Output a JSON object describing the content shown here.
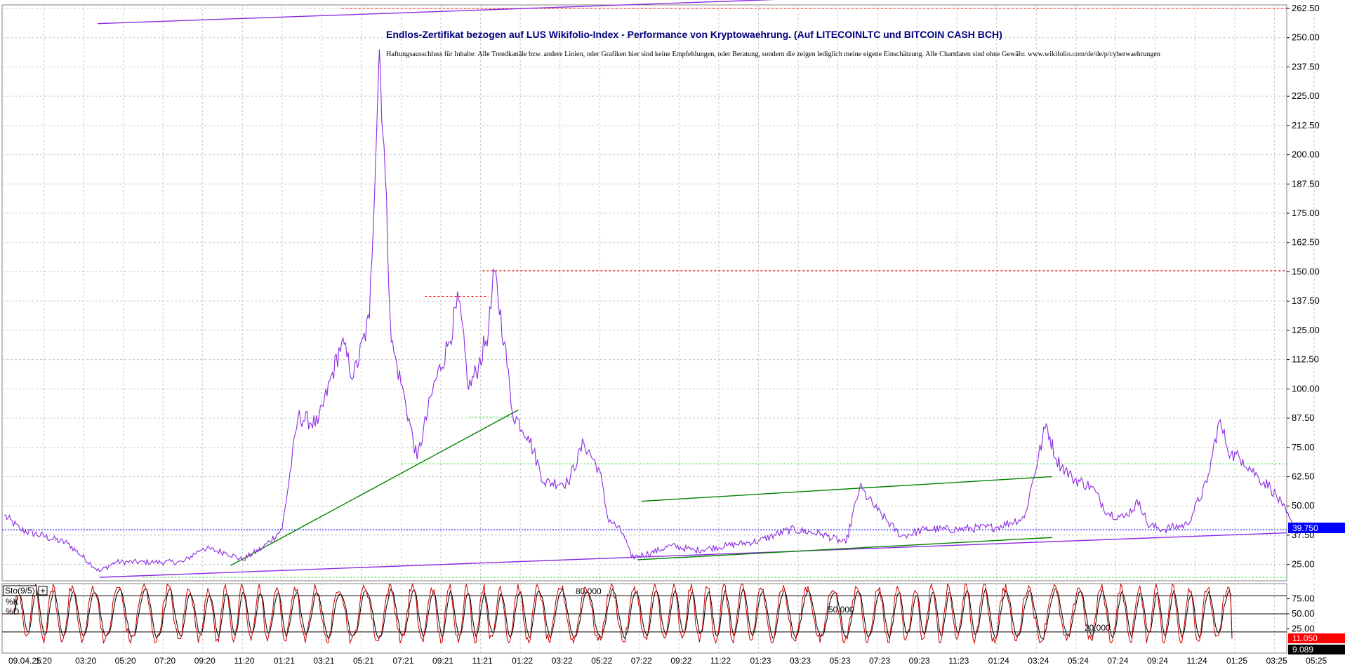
{
  "chart_data": {
    "type": "line",
    "title": "Endlos-Zertifikat bezogen auf LUS Wikifolio-Index - Performance von Kryptowaehrung. (Auf LITECOINLTC und BITCOIN CASH BCH)",
    "subtitle": "Haftungsausschluss für Inhalte: Alle Trendkanäle bzw. andere Linien, oder Grafiken hier sind keine Empfehlungen, oder Beratung, sondern die zeigen lediglich meine eigene Einschätzung. Alle Chartdaten sind ohne Gewähr. www.wikifolio.com/de/de/p/cyberwaehrungen",
    "y_ticks": [
      "262.50",
      "250.00",
      "237.50",
      "225.00",
      "212.50",
      "200.00",
      "187.50",
      "175.00",
      "162.50",
      "150.00",
      "137.50",
      "125.00",
      "112.50",
      "100.00",
      "87.50",
      "75.00",
      "62.50",
      "50.00",
      "37.50",
      "25.00"
    ],
    "ylim": [
      18,
      264
    ],
    "x_ticks": [
      "09.04.25",
      "1:20",
      "03:20",
      "05:20",
      "07:20",
      "09:20",
      "11:20",
      "01:21",
      "03:21",
      "05:21",
      "07:21",
      "09:21",
      "11:21",
      "01:22",
      "03:22",
      "05:22",
      "07:22",
      "09:22",
      "11:22",
      "01:23",
      "03:23",
      "05:23",
      "07:23",
      "09:23",
      "11:23",
      "01:24",
      "03:24",
      "05:24",
      "07:24",
      "09:24",
      "11:24",
      "01:25",
      "03:25",
      "05:25"
    ],
    "series": [
      {
        "color": "#8b2be2",
        "anchors": [
          [
            0,
            46
          ],
          [
            0.4,
            40
          ],
          [
            1.6,
            34
          ],
          [
            2.4,
            22
          ],
          [
            2.8,
            26
          ],
          [
            3.8,
            26
          ],
          [
            4.5,
            26
          ],
          [
            5.0,
            32
          ],
          [
            5.6,
            30
          ],
          [
            6.0,
            27
          ],
          [
            6.5,
            32
          ],
          [
            7.0,
            40
          ],
          [
            7.4,
            88
          ],
          [
            7.9,
            85
          ],
          [
            8.5,
            120
          ],
          [
            8.8,
            105
          ],
          [
            9.2,
            130
          ],
          [
            9.45,
            245
          ],
          [
            9.6,
            190
          ],
          [
            9.75,
            120
          ],
          [
            10.1,
            95
          ],
          [
            10.4,
            70
          ],
          [
            10.8,
            100
          ],
          [
            11.2,
            120
          ],
          [
            11.45,
            138
          ],
          [
            11.7,
            100
          ],
          [
            11.95,
            110
          ],
          [
            12.2,
            125
          ],
          [
            12.35,
            150
          ],
          [
            12.6,
            120
          ],
          [
            12.8,
            90
          ],
          [
            13.2,
            80
          ],
          [
            13.6,
            60
          ],
          [
            14.2,
            60
          ],
          [
            14.6,
            77
          ],
          [
            15.0,
            65
          ],
          [
            15.2,
            45
          ],
          [
            15.6,
            38
          ],
          [
            15.8,
            28
          ],
          [
            16.3,
            30
          ],
          [
            16.8,
            33
          ],
          [
            17.4,
            31
          ],
          [
            18.2,
            33
          ],
          [
            19.0,
            35
          ],
          [
            19.8,
            40
          ],
          [
            20.6,
            38
          ],
          [
            21.2,
            34
          ],
          [
            21.55,
            58
          ],
          [
            22.0,
            48
          ],
          [
            22.6,
            37
          ],
          [
            23.2,
            40
          ],
          [
            24.0,
            40
          ],
          [
            25.0,
            41
          ],
          [
            25.7,
            45
          ],
          [
            25.9,
            60
          ],
          [
            26.25,
            85
          ],
          [
            26.5,
            70
          ],
          [
            26.9,
            62
          ],
          [
            27.4,
            58
          ],
          [
            27.8,
            47
          ],
          [
            28.2,
            45
          ],
          [
            28.6,
            52
          ],
          [
            28.8,
            42
          ],
          [
            29.2,
            40
          ],
          [
            29.8,
            42
          ],
          [
            30.3,
            60
          ],
          [
            30.6,
            86
          ],
          [
            30.9,
            72
          ],
          [
            31.2,
            70
          ],
          [
            31.6,
            62
          ],
          [
            31.9,
            58
          ],
          [
            32.2,
            50
          ],
          [
            32.5,
            40
          ],
          [
            32.6,
            38.5
          ]
        ]
      }
    ],
    "last_value_label": "39.750",
    "red_dashed_levels": [
      {
        "y": 262.5,
        "x_from": 8.5,
        "x_to": 34.1
      },
      {
        "y": 150.5,
        "x_from": 12.05,
        "x_to": 34.1
      },
      {
        "y": 139.5,
        "x_from": 10.6,
        "x_to": 12.2
      }
    ],
    "green_dotted_levels": [
      {
        "y": 88,
        "x_from": 11.7,
        "x_to": 12.85
      },
      {
        "y": 68,
        "x_from": 10.0,
        "x_to": 34.1
      },
      {
        "y": 19.5,
        "x_from": 3.5,
        "x_to": 34.1
      }
    ],
    "blue_dotted_level": {
      "y": 39.75
    },
    "trendlines": [
      {
        "color": "#8b2be2",
        "points": [
          [
            2.35,
            256
          ],
          [
            20.6,
            267
          ]
        ]
      },
      {
        "color": "#8b2be2",
        "points": [
          [
            2.4,
            19.5
          ],
          [
            34.1,
            38.5
          ]
        ]
      },
      {
        "color": "#008000",
        "points": [
          [
            5.7,
            24.5
          ],
          [
            12.95,
            91
          ]
        ]
      },
      {
        "color": "#008000",
        "points": [
          [
            16.05,
            52
          ],
          [
            26.4,
            62.5
          ]
        ]
      },
      {
        "color": "#008000",
        "points": [
          [
            15.95,
            27
          ],
          [
            26.4,
            36.5
          ]
        ]
      }
    ],
    "indicator": {
      "name": "Sto(9/5)",
      "k_label": "%K",
      "d_label": "%D",
      "levels": [
        "80.000",
        "50.000",
        "20.000"
      ],
      "y_ticks": [
        "75.00",
        "50.00",
        "25.00"
      ],
      "k_value": "11.050",
      "d_value": "9.089",
      "ylim": [
        -15,
        100
      ]
    }
  },
  "colors": {
    "price_line": "#8b2be2",
    "k_line": "#cc0000",
    "d_line": "#000000",
    "grid": "#c8c8c8",
    "last_value_bg": "#0000ff",
    "k_value_bg": "#ff0000",
    "d_value_bg": "#000000"
  }
}
